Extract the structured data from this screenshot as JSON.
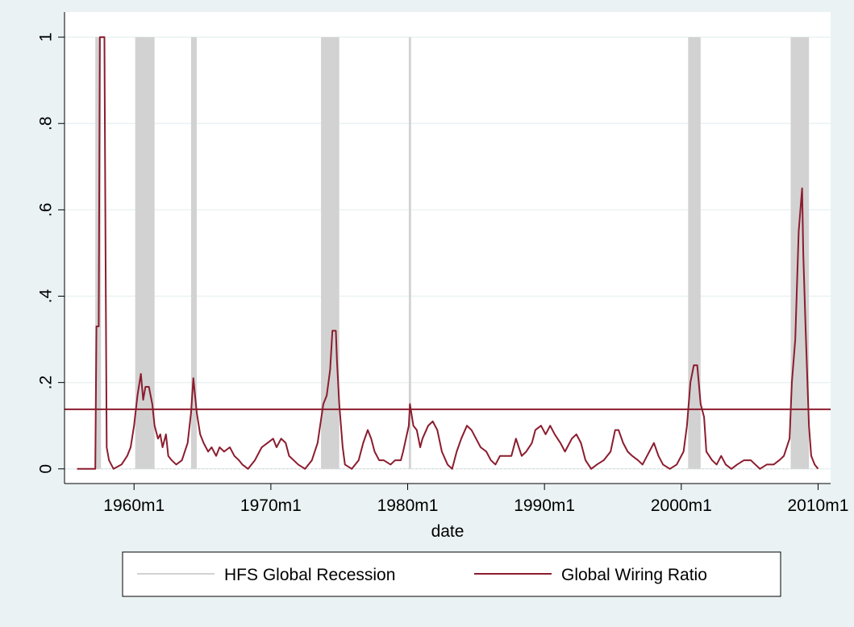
{
  "chart_data": {
    "type": "line",
    "x_label": "date",
    "xlim": [
      -61,
      611
    ],
    "xticks": [
      {
        "value": 0,
        "label": "1960m1"
      },
      {
        "value": 120,
        "label": "1970m1"
      },
      {
        "value": 240,
        "label": "1980m1"
      },
      {
        "value": 360,
        "label": "1990m1"
      },
      {
        "value": 480,
        "label": "2000m1"
      },
      {
        "value": 600,
        "label": "2010m1"
      }
    ],
    "ylim": [
      -0.034,
      1.058
    ],
    "yticks": [
      0,
      {
        "value": 0.2,
        "label": ".2"
      },
      {
        "value": 0.4,
        "label": ".4"
      },
      {
        "value": 0.6,
        "label": ".6"
      },
      {
        "value": 0.8,
        "label": ".8"
      },
      1
    ],
    "grid": true,
    "hline": {
      "value": 0.138,
      "color": "#8b1c2e"
    },
    "series": [
      {
        "name": "HFS Global Recession",
        "type": "shade",
        "color": "#d2d2d2",
        "x": [
          -34,
          1,
          50,
          164,
          241,
          486,
          576
        ],
        "x_end": [
          -29,
          18,
          55,
          180,
          243,
          497,
          592
        ],
        "values": [
          1,
          1,
          1,
          1,
          1,
          1,
          1
        ]
      },
      {
        "name": "Global Wiring Ratio",
        "type": "line",
        "color": "#8b1c2e",
        "x": [
          -50,
          -34,
          -33,
          -31,
          -30,
          -26,
          -25,
          -24,
          -22,
          -18,
          -11,
          -6,
          -3,
          0,
          3,
          6,
          8,
          10,
          13,
          16,
          18,
          21,
          23,
          25,
          28,
          30,
          33,
          37,
          42,
          47,
          50,
          52,
          55,
          58,
          61,
          65,
          68,
          72,
          75,
          79,
          84,
          88,
          92,
          95,
          100,
          106,
          112,
          117,
          122,
          125,
          129,
          133,
          136,
          140,
          144,
          150,
          156,
          161,
          166,
          169,
          172,
          174,
          177,
          178,
          180,
          183,
          185,
          191,
          197,
          201,
          205,
          208,
          211,
          215,
          219,
          225,
          229,
          234,
          236,
          241,
          242,
          245,
          248,
          251,
          253,
          258,
          262,
          266,
          270,
          275,
          279,
          283,
          287,
          292,
          296,
          300,
          304,
          309,
          313,
          317,
          321,
          326,
          331,
          335,
          340,
          344,
          349,
          352,
          357,
          361,
          365,
          369,
          374,
          378,
          384,
          388,
          392,
          396,
          401,
          406,
          412,
          418,
          422,
          425,
          429,
          433,
          437,
          442,
          446,
          450,
          456,
          460,
          464,
          470,
          476,
          482,
          485,
          488,
          491,
          494,
          497,
          500,
          502,
          507,
          511,
          515,
          519,
          524,
          529,
          535,
          541,
          545,
          549,
          555,
          561,
          566,
          570,
          575,
          577,
          580,
          583,
          586,
          587,
          589,
          592,
          594,
          597,
          600
        ],
        "values": [
          0,
          0,
          0.33,
          0.33,
          1,
          1,
          0.5,
          0.05,
          0.02,
          0,
          0.01,
          0.03,
          0.05,
          0.1,
          0.17,
          0.22,
          0.16,
          0.19,
          0.19,
          0.15,
          0.1,
          0.07,
          0.08,
          0.05,
          0.08,
          0.03,
          0.02,
          0.01,
          0.02,
          0.06,
          0.13,
          0.21,
          0.13,
          0.08,
          0.06,
          0.04,
          0.05,
          0.03,
          0.05,
          0.04,
          0.05,
          0.03,
          0.02,
          0.01,
          0,
          0.02,
          0.05,
          0.06,
          0.07,
          0.05,
          0.07,
          0.06,
          0.03,
          0.02,
          0.01,
          0,
          0.02,
          0.06,
          0.15,
          0.17,
          0.23,
          0.32,
          0.32,
          0.25,
          0.15,
          0.05,
          0.01,
          0,
          0.02,
          0.06,
          0.09,
          0.07,
          0.04,
          0.02,
          0.02,
          0.01,
          0.02,
          0.02,
          0.04,
          0.1,
          0.15,
          0.1,
          0.09,
          0.05,
          0.07,
          0.1,
          0.11,
          0.09,
          0.04,
          0.01,
          0,
          0.04,
          0.07,
          0.1,
          0.09,
          0.07,
          0.05,
          0.04,
          0.02,
          0.01,
          0.03,
          0.03,
          0.03,
          0.07,
          0.03,
          0.04,
          0.06,
          0.09,
          0.1,
          0.08,
          0.1,
          0.08,
          0.06,
          0.04,
          0.07,
          0.08,
          0.06,
          0.02,
          0,
          0.01,
          0.02,
          0.04,
          0.09,
          0.09,
          0.06,
          0.04,
          0.03,
          0.02,
          0.01,
          0.03,
          0.06,
          0.03,
          0.01,
          0,
          0.01,
          0.04,
          0.1,
          0.2,
          0.24,
          0.24,
          0.15,
          0.12,
          0.04,
          0.02,
          0.01,
          0.03,
          0.01,
          0,
          0.01,
          0.02,
          0.02,
          0.01,
          0,
          0.01,
          0.01,
          0.02,
          0.03,
          0.07,
          0.2,
          0.3,
          0.55,
          0.65,
          0.5,
          0.33,
          0.1,
          0.03,
          0.01,
          0
        ]
      }
    ]
  }
}
